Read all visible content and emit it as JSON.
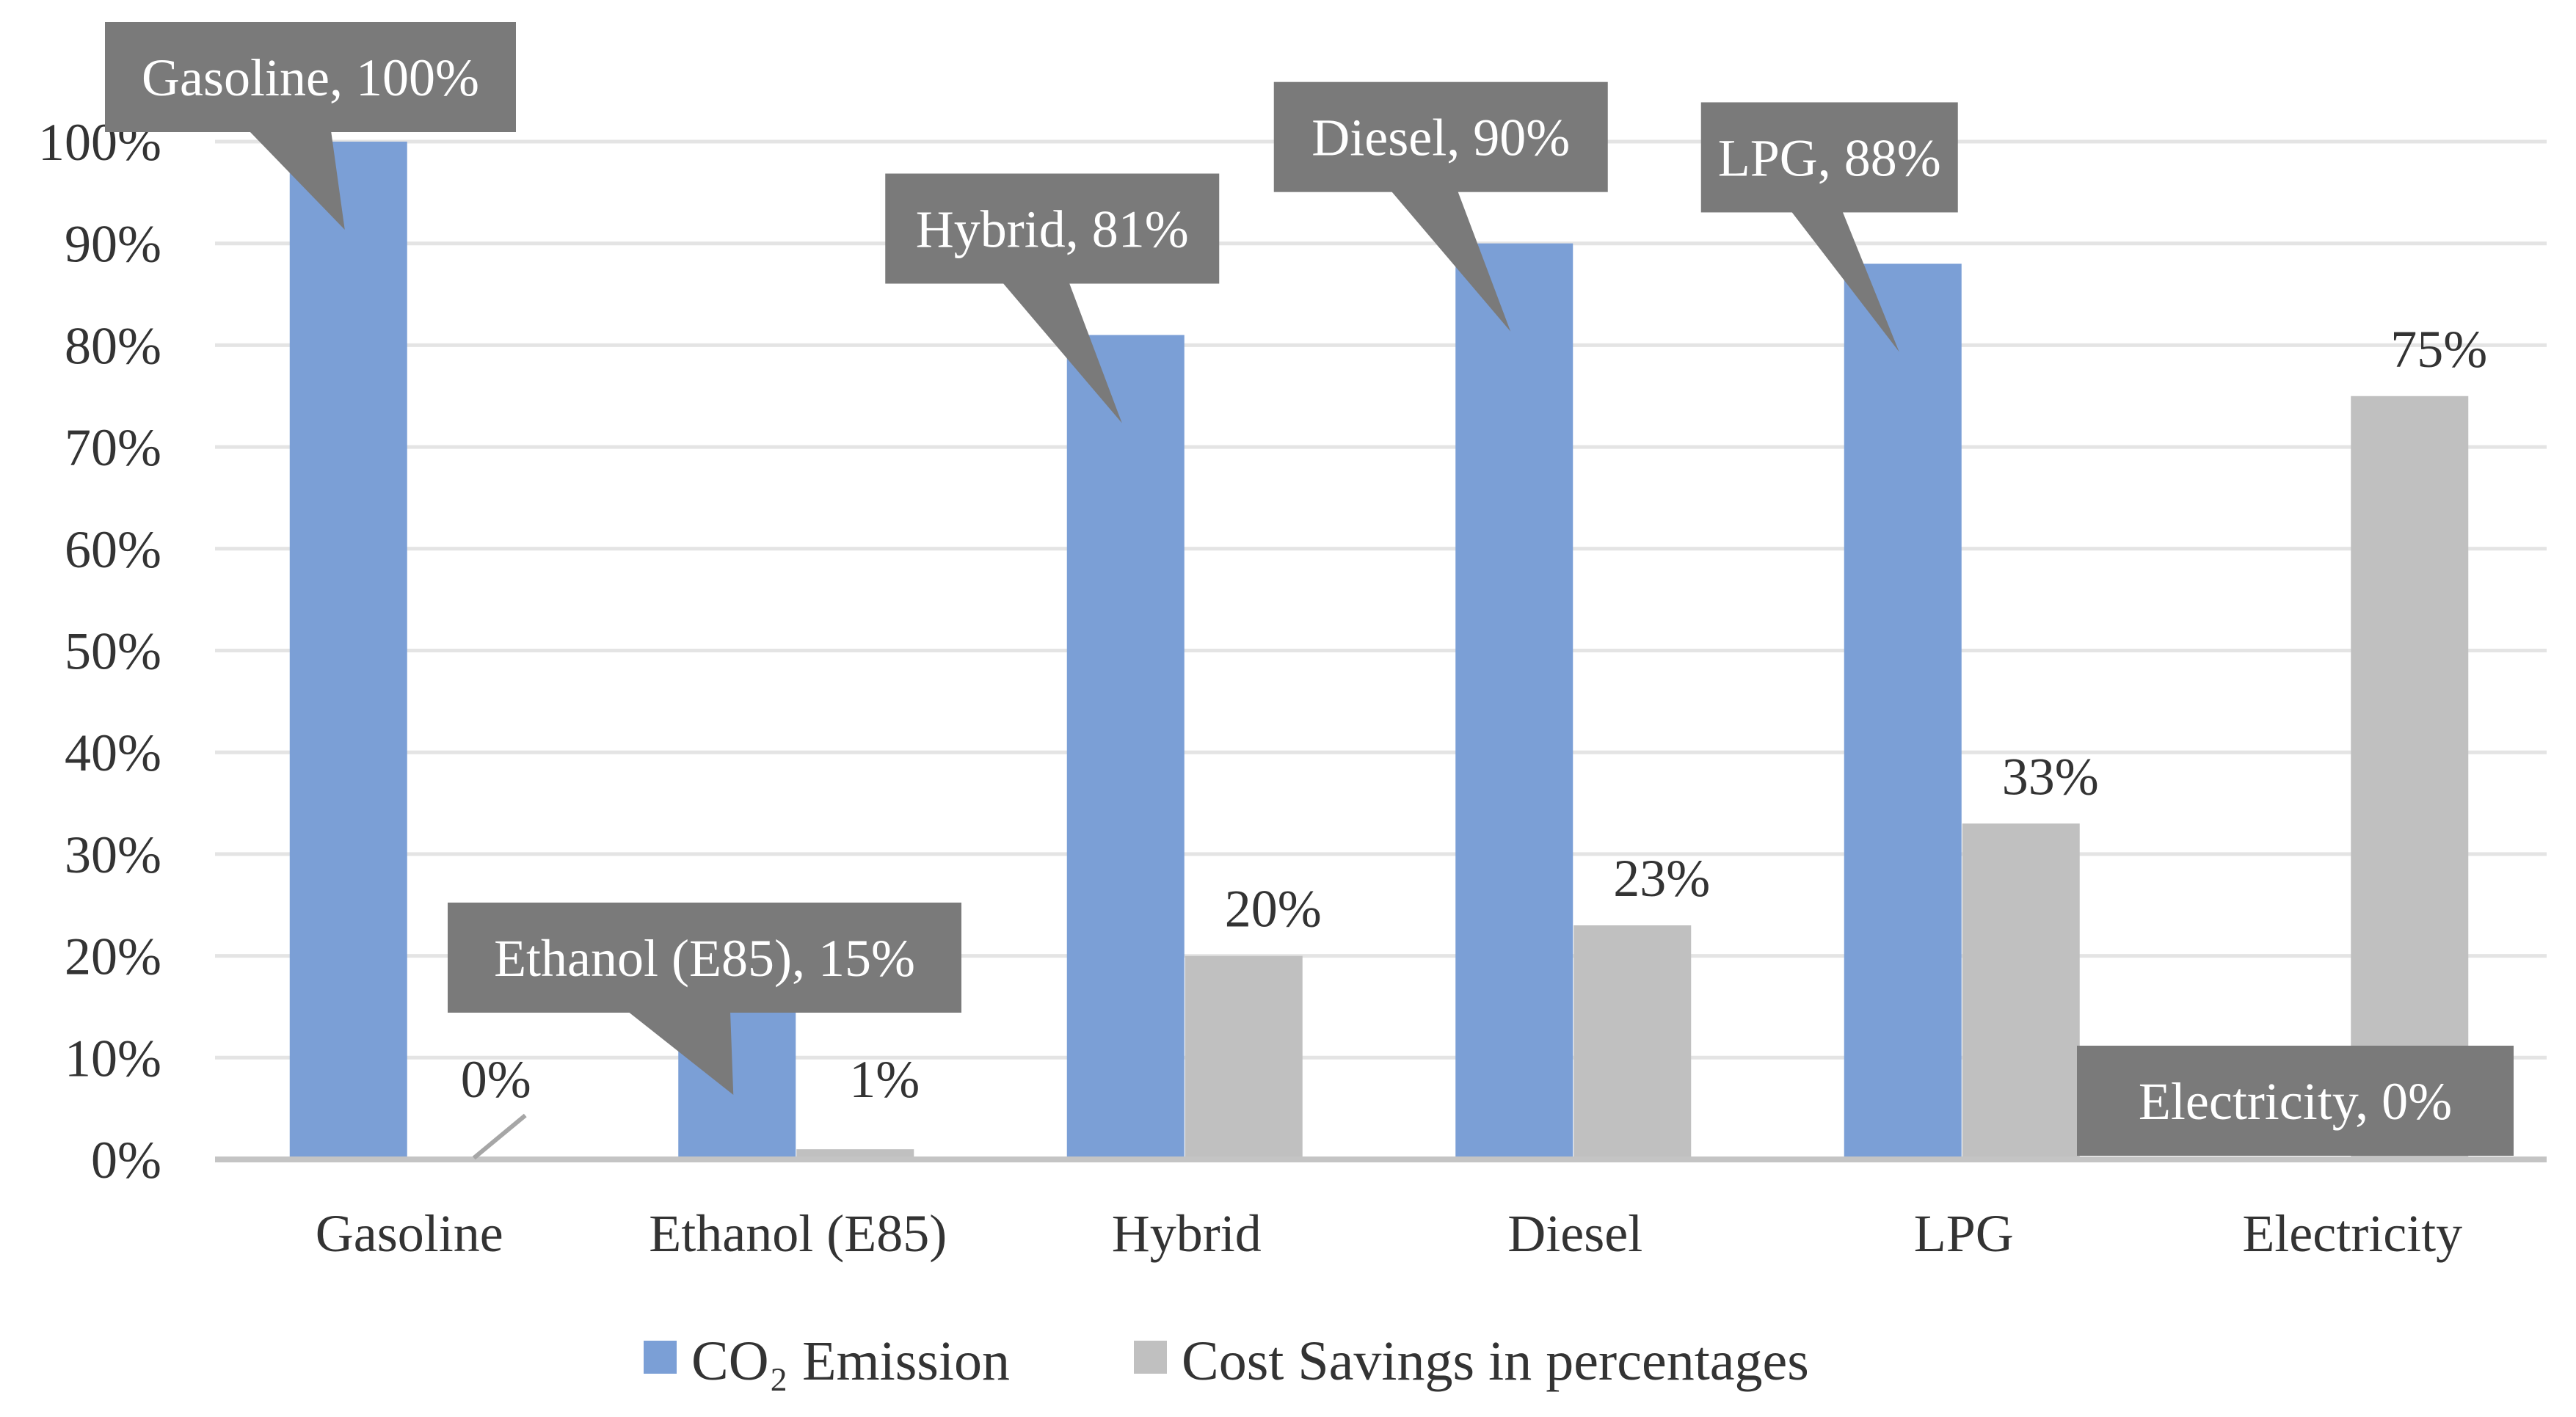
{
  "chart_data": {
    "type": "bar",
    "categories": [
      "Gasoline",
      "Ethanol (E85)",
      "Hybrid",
      "Diesel",
      "LPG",
      "Electricity"
    ],
    "series": [
      {
        "name": "CO₂ Emission",
        "color": "#7b9fd6",
        "values": [
          100,
          15,
          81,
          90,
          88,
          0
        ],
        "labels": [
          "Gasoline, 100%",
          "Ethanol (E85), 15%",
          "Hybrid, 81%",
          "Diesel, 90%",
          "LPG, 88%",
          "Electricity, 0%"
        ]
      },
      {
        "name": "Cost Savings in percentages",
        "color": "#c0c0c0",
        "values": [
          0,
          1,
          20,
          23,
          33,
          75
        ],
        "labels": [
          "0%",
          "1%",
          "20%",
          "23%",
          "33%",
          "75%"
        ]
      }
    ],
    "yticks": [
      "0%",
      "10%",
      "20%",
      "30%",
      "40%",
      "50%",
      "60%",
      "70%",
      "80%",
      "90%",
      "100%"
    ],
    "ylim": [
      0,
      100
    ],
    "grid": true,
    "legend": "bottom",
    "callout_color": "#7a7a7a"
  }
}
